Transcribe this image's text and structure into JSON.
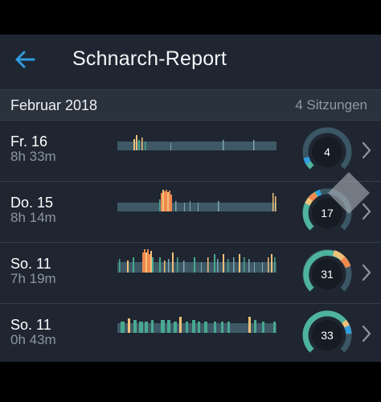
{
  "header": {
    "title": "Schnarch-Report",
    "back_icon": "arrow-left-icon"
  },
  "month": {
    "label": "Februar 2018",
    "count": "4 Sitzungen"
  },
  "colors": {
    "accent": "#2f9de0",
    "track": "#3e5866",
    "teal": "#48a890",
    "snore_light": "#f0c27a",
    "snore_heavy": "#f2884e",
    "gauge_bg": "#3b5664",
    "gauge_fill": "#4eb39f"
  },
  "sessions": [
    {
      "day": "Fr. 16",
      "duration": "8h 33m",
      "score": "4",
      "score_fraction": 0.04
    },
    {
      "day": "Do. 15",
      "duration": "8h 14m",
      "score": "17",
      "score_fraction": 0.17
    },
    {
      "day": "So. 11",
      "duration": "7h 19m",
      "score": "31",
      "score_fraction": 0.31
    },
    {
      "day": "So. 11",
      "duration": "0h 43m",
      "score": "33",
      "score_fraction": 0.33
    }
  ]
}
